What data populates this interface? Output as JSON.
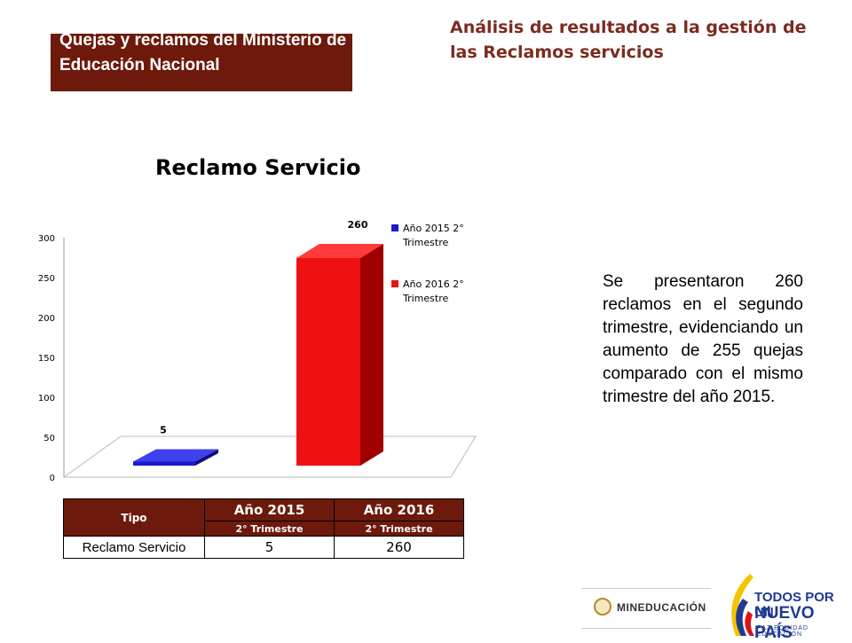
{
  "header": {
    "box_title": "Quejas y reclamos del Ministerio de Educación Nacional",
    "right_title": "Análisis de resultados a la gestión de las Reclamos servicios"
  },
  "chart_data": {
    "type": "bar",
    "title": "Reclamo Servicio",
    "categories": [
      "Reclamo Servicio"
    ],
    "series": [
      {
        "name": "Año 2015 2° Trimestre",
        "values": [
          5
        ],
        "color": "#1a1acc"
      },
      {
        "name": "Año 2016 2° Trimestre",
        "values": [
          260
        ],
        "color": "#ee1111"
      }
    ],
    "data_labels": [
      "5",
      "260"
    ],
    "ylim": [
      0,
      300
    ],
    "yticks": [
      "0",
      "50",
      "100",
      "150",
      "200",
      "250",
      "300"
    ],
    "legend_position": "right",
    "grid": false
  },
  "description": "Se presentaron 260 reclamos en el segundo trimestre, evidenciando un aumento de 255 quejas comparado con el mismo trimestre del año 2015.",
  "table": {
    "col_tipo": "Tipo",
    "col_2015": "Año 2015",
    "col_2016": "Año 2016",
    "sub_2015": "2° Trimestre",
    "sub_2016": "2° Trimestre",
    "row_label": "Reclamo Servicio",
    "row_2015": "5",
    "row_2016": "260"
  },
  "logos": {
    "mineducacion": "MINEDUCACIÓN",
    "todos_line1": "TODOS POR UN",
    "todos_line2": "NUEVO PAÍS",
    "todos_line3": "PAZ EQUIDAD EDUCACIÓN"
  }
}
